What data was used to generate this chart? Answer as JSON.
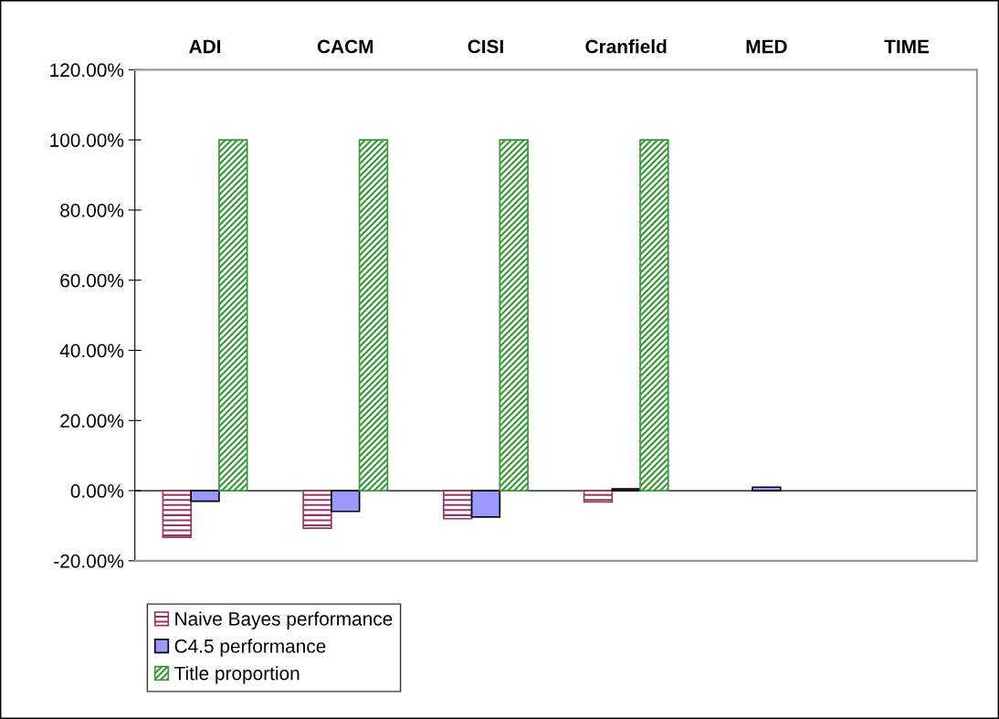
{
  "chart_data": {
    "type": "bar",
    "categories": [
      "ADI",
      "CACM",
      "CISI",
      "Cranfield",
      "MED",
      "TIME"
    ],
    "series": [
      {
        "name": "Naive Bayes performance",
        "color": "#993366",
        "values": [
          -13.3,
          -10.7,
          -8.0,
          -3.2,
          null,
          null
        ]
      },
      {
        "name": "C4.5 performance",
        "color": "#9999ff",
        "values": [
          -3.0,
          -5.9,
          -7.5,
          0.5,
          1.0,
          null
        ]
      },
      {
        "name": "Title proportion",
        "color": "#339933",
        "values": [
          100,
          100,
          100,
          100,
          null,
          null
        ]
      }
    ],
    "ylim": [
      -20,
      120
    ],
    "yticks": [
      {
        "value": -20,
        "label": "-20.00%"
      },
      {
        "value": 0,
        "label": "0.00%"
      },
      {
        "value": 20,
        "label": "20.00%"
      },
      {
        "value": 40,
        "label": "40.00%"
      },
      {
        "value": 60,
        "label": "60.00%"
      },
      {
        "value": 80,
        "label": "80.00%"
      },
      {
        "value": 100,
        "label": "100.00%"
      },
      {
        "value": 120,
        "label": "120.00%"
      }
    ],
    "legend": "bottom left"
  }
}
